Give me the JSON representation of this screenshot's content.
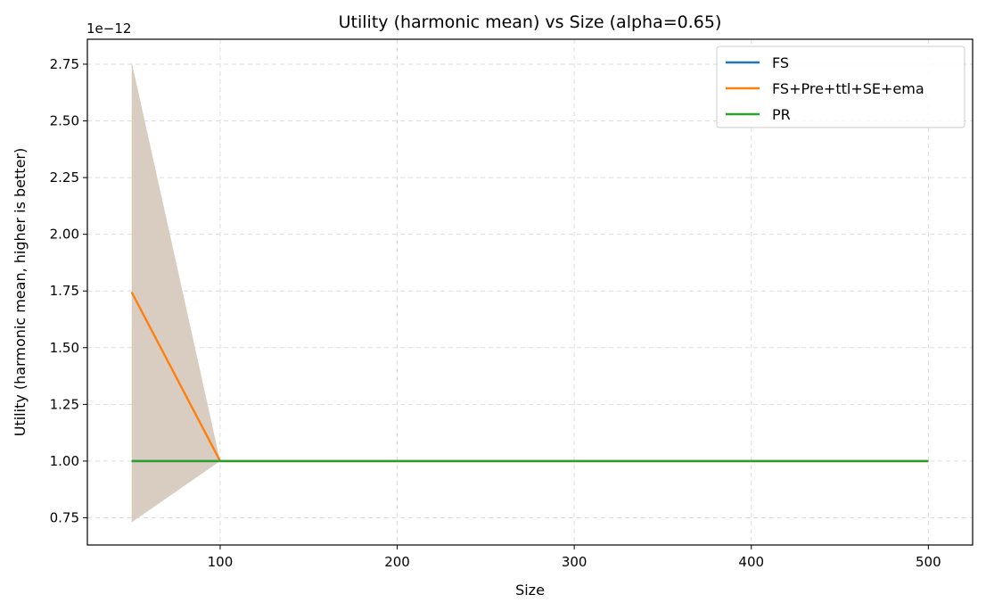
{
  "chart_data": {
    "type": "line",
    "title": "Utility (harmonic mean) vs Size (alpha=0.65)",
    "xlabel": "Size",
    "ylabel": "Utility (harmonic mean, higher is better)",
    "y_scale_label": "1e−12",
    "xlim": [
      25,
      525
    ],
    "ylim": [
      0.63,
      2.86
    ],
    "x_ticks": [
      100,
      200,
      300,
      400,
      500
    ],
    "y_ticks": [
      0.75,
      1.0,
      1.25,
      1.5,
      1.75,
      2.0,
      2.25,
      2.5,
      2.75
    ],
    "grid": true,
    "legend_position": "upper right",
    "band": {
      "color": "#d9cdc1",
      "x": [
        50,
        100
      ],
      "lower": [
        0.73,
        1.0
      ],
      "upper": [
        2.76,
        1.0
      ]
    },
    "series": [
      {
        "name": "FS",
        "color": "#1f77b4",
        "x": [
          50,
          100,
          200,
          300,
          400,
          500
        ],
        "y": [
          1.0,
          1.0,
          1.0,
          1.0,
          1.0,
          1.0
        ]
      },
      {
        "name": "FS+Pre+ttl+SE+ema",
        "color": "#ff7f0e",
        "x": [
          50,
          100,
          200,
          300,
          400,
          500
        ],
        "y": [
          1.745,
          1.0,
          1.0,
          1.0,
          1.0,
          1.0
        ]
      },
      {
        "name": "PR",
        "color": "#2ca02c",
        "x": [
          50,
          100,
          200,
          300,
          400,
          500
        ],
        "y": [
          1.0,
          1.0,
          1.0,
          1.0,
          1.0,
          1.0
        ]
      }
    ]
  }
}
